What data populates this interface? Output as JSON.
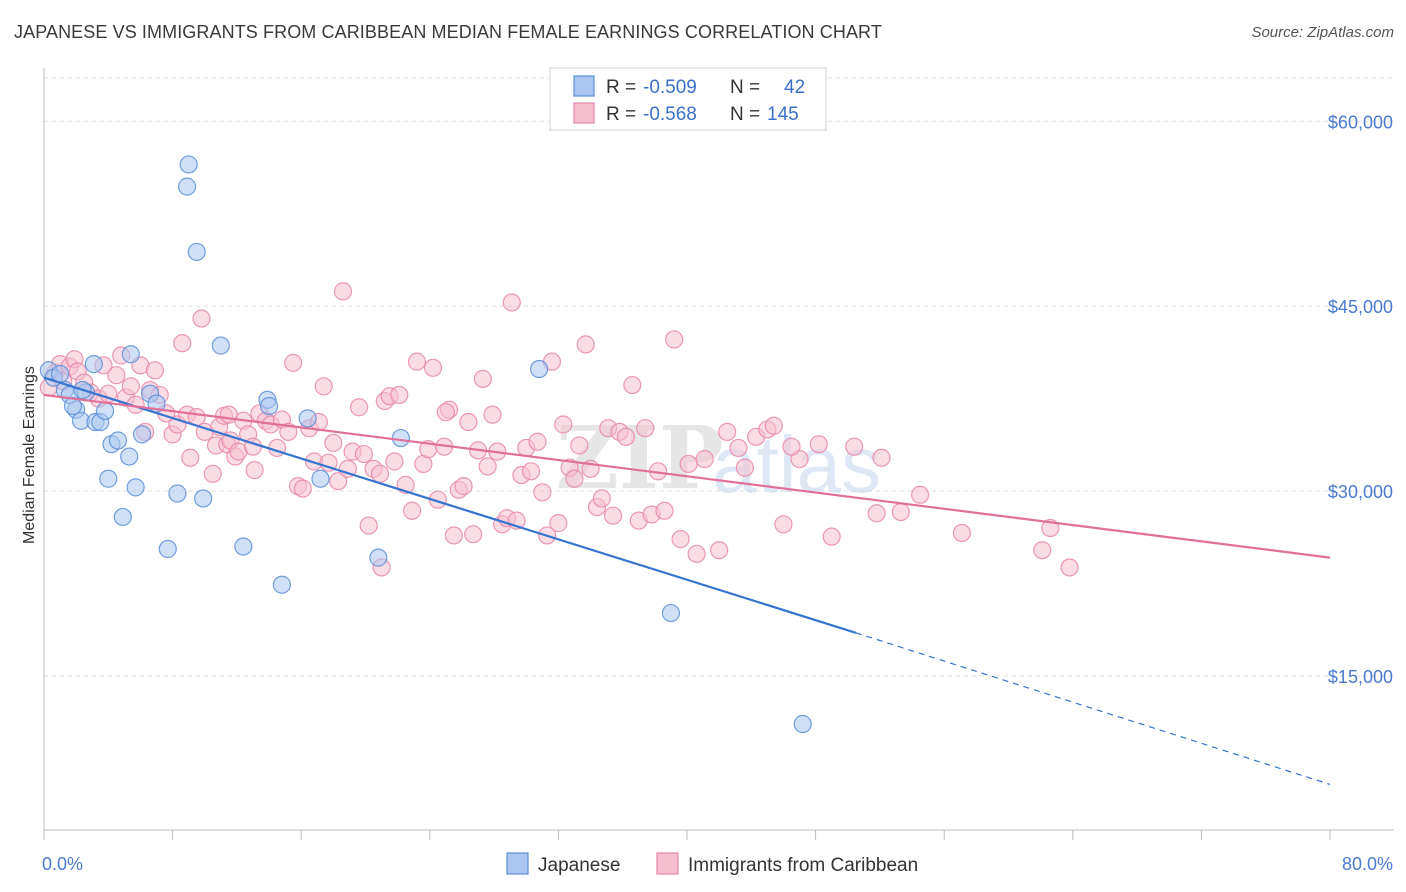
{
  "title": "JAPANESE VS IMMIGRANTS FROM CARIBBEAN MEDIAN FEMALE EARNINGS CORRELATION CHART",
  "source": "Source: ZipAtlas.com",
  "watermark": {
    "zip": "ZIP",
    "atlas": "atlas"
  },
  "legend": {
    "r_label": "R =",
    "n_label": "N =",
    "series": [
      {
        "name": "Japanese",
        "r": "-0.509",
        "n": "42",
        "fill": "#aac6f0",
        "stroke": "#5b8ed8"
      },
      {
        "name": "Immigrants from Caribbean",
        "r": "-0.568",
        "n": "145",
        "fill": "#f6bfd0",
        "stroke": "#e887a8"
      }
    ]
  },
  "chart_data": {
    "type": "scatter",
    "title": "JAPANESE VS IMMIGRANTS FROM CARIBBEAN MEDIAN FEMALE EARNINGS CORRELATION CHART",
    "xlabel": "",
    "ylabel": "Median Female Earnings",
    "xlim": [
      0,
      80
    ],
    "ylim": [
      2500,
      64000
    ],
    "x_tick_labels": [
      "0.0%",
      "80.0%"
    ],
    "y_ticks": [
      15000,
      30000,
      45000,
      60000
    ],
    "y_tick_labels": [
      "$15,000",
      "$30,000",
      "$45,000",
      "$60,000"
    ],
    "series": [
      {
        "name": "Japanese",
        "color": "#5b8ed8",
        "fill": "#aac6f0",
        "trend": {
          "x0": 0,
          "y0": 39200,
          "x1": 50.5,
          "y1": 18500,
          "dash_to_x": 80,
          "dash_to_y": 6200,
          "color": "#3574d0"
        },
        "points": [
          [
            0.3,
            39800
          ],
          [
            0.6,
            39200
          ],
          [
            1.0,
            39500
          ],
          [
            1.3,
            38200
          ],
          [
            1.6,
            37800
          ],
          [
            2.0,
            36600
          ],
          [
            2.3,
            35700
          ],
          [
            2.6,
            38000
          ],
          [
            3.1,
            40300
          ],
          [
            3.2,
            35600
          ],
          [
            3.5,
            35600
          ],
          [
            3.8,
            36500
          ],
          [
            4.0,
            31000
          ],
          [
            4.2,
            33800
          ],
          [
            4.6,
            34100
          ],
          [
            4.9,
            27900
          ],
          [
            5.3,
            32800
          ],
          [
            5.4,
            41100
          ],
          [
            5.7,
            30300
          ],
          [
            6.1,
            34600
          ],
          [
            6.6,
            37900
          ],
          [
            7.0,
            37100
          ],
          [
            7.7,
            25300
          ],
          [
            8.3,
            29800
          ],
          [
            9.0,
            56500
          ],
          [
            8.9,
            54700
          ],
          [
            9.5,
            49400
          ],
          [
            9.9,
            29400
          ],
          [
            11.0,
            41800
          ],
          [
            12.4,
            25500
          ],
          [
            13.9,
            37400
          ],
          [
            14.0,
            36900
          ],
          [
            14.8,
            22400
          ],
          [
            16.4,
            35900
          ],
          [
            17.2,
            31000
          ],
          [
            20.8,
            24600
          ],
          [
            22.2,
            34300
          ],
          [
            30.8,
            39900
          ],
          [
            39.0,
            20100
          ],
          [
            47.2,
            11100
          ],
          [
            1.8,
            36900
          ],
          [
            2.4,
            38200
          ]
        ]
      },
      {
        "name": "Immigrants from Caribbean",
        "color": "#e887a8",
        "fill": "#f6bfd0",
        "trend": {
          "x0": 0,
          "y0": 37800,
          "x1": 80,
          "y1": 24600,
          "color": "#e07099"
        },
        "points": [
          [
            0.3,
            38400
          ],
          [
            0.7,
            39600
          ],
          [
            1.0,
            40300
          ],
          [
            1.2,
            38900
          ],
          [
            1.6,
            40100
          ],
          [
            1.9,
            40700
          ],
          [
            2.1,
            39700
          ],
          [
            2.5,
            38800
          ],
          [
            2.9,
            38000
          ],
          [
            3.4,
            37500
          ],
          [
            3.7,
            40200
          ],
          [
            4.0,
            37900
          ],
          [
            4.5,
            39400
          ],
          [
            4.8,
            41000
          ],
          [
            5.1,
            37600
          ],
          [
            5.4,
            38500
          ],
          [
            5.7,
            37000
          ],
          [
            6.0,
            40200
          ],
          [
            6.3,
            34800
          ],
          [
            6.6,
            38200
          ],
          [
            6.9,
            39800
          ],
          [
            7.2,
            37800
          ],
          [
            7.6,
            36300
          ],
          [
            8.0,
            34600
          ],
          [
            8.3,
            35400
          ],
          [
            8.6,
            42000
          ],
          [
            8.9,
            36200
          ],
          [
            9.1,
            32700
          ],
          [
            9.5,
            36000
          ],
          [
            9.8,
            44000
          ],
          [
            10.0,
            34800
          ],
          [
            10.5,
            31400
          ],
          [
            10.7,
            33700
          ],
          [
            10.9,
            35200
          ],
          [
            11.2,
            36100
          ],
          [
            11.4,
            33800
          ],
          [
            11.6,
            34100
          ],
          [
            11.9,
            32800
          ],
          [
            12.1,
            33200
          ],
          [
            12.4,
            35700
          ],
          [
            12.7,
            34600
          ],
          [
            13.1,
            31700
          ],
          [
            13.4,
            36300
          ],
          [
            13.8,
            35700
          ],
          [
            14.1,
            35400
          ],
          [
            14.5,
            33500
          ],
          [
            14.8,
            35800
          ],
          [
            15.2,
            34800
          ],
          [
            15.5,
            40400
          ],
          [
            15.8,
            30400
          ],
          [
            16.1,
            30200
          ],
          [
            16.5,
            35100
          ],
          [
            16.8,
            32400
          ],
          [
            17.1,
            35600
          ],
          [
            17.4,
            38500
          ],
          [
            17.7,
            32300
          ],
          [
            18.0,
            33900
          ],
          [
            18.3,
            30800
          ],
          [
            18.6,
            46200
          ],
          [
            18.9,
            31800
          ],
          [
            19.2,
            33200
          ],
          [
            19.6,
            36800
          ],
          [
            19.9,
            33000
          ],
          [
            20.2,
            27200
          ],
          [
            20.5,
            31800
          ],
          [
            20.9,
            31400
          ],
          [
            21.2,
            37300
          ],
          [
            21.5,
            37700
          ],
          [
            21.8,
            32400
          ],
          [
            22.1,
            37800
          ],
          [
            22.5,
            30500
          ],
          [
            22.9,
            28400
          ],
          [
            23.2,
            40500
          ],
          [
            23.6,
            32200
          ],
          [
            23.9,
            33400
          ],
          [
            24.2,
            40000
          ],
          [
            24.5,
            29300
          ],
          [
            24.9,
            33600
          ],
          [
            25.2,
            36600
          ],
          [
            25.5,
            26400
          ],
          [
            25.8,
            30100
          ],
          [
            26.1,
            30400
          ],
          [
            26.4,
            35600
          ],
          [
            26.7,
            26500
          ],
          [
            27.0,
            33300
          ],
          [
            27.3,
            39100
          ],
          [
            27.6,
            32000
          ],
          [
            27.9,
            36200
          ],
          [
            28.2,
            33200
          ],
          [
            28.5,
            27300
          ],
          [
            28.8,
            27800
          ],
          [
            29.1,
            45300
          ],
          [
            29.4,
            27600
          ],
          [
            29.7,
            31300
          ],
          [
            30.0,
            33500
          ],
          [
            30.3,
            31600
          ],
          [
            30.7,
            34000
          ],
          [
            31.0,
            29900
          ],
          [
            31.3,
            26400
          ],
          [
            31.6,
            40500
          ],
          [
            32.0,
            27400
          ],
          [
            32.3,
            35400
          ],
          [
            32.7,
            31900
          ],
          [
            33.0,
            31000
          ],
          [
            33.3,
            33700
          ],
          [
            33.7,
            41900
          ],
          [
            34.0,
            31800
          ],
          [
            34.4,
            28700
          ],
          [
            34.7,
            29400
          ],
          [
            35.1,
            35100
          ],
          [
            35.4,
            28000
          ],
          [
            35.8,
            34800
          ],
          [
            36.2,
            34400
          ],
          [
            36.6,
            38600
          ],
          [
            37.0,
            27600
          ],
          [
            37.4,
            35100
          ],
          [
            37.8,
            28100
          ],
          [
            38.2,
            31600
          ],
          [
            38.6,
            28400
          ],
          [
            39.2,
            42300
          ],
          [
            39.6,
            26100
          ],
          [
            40.1,
            32200
          ],
          [
            40.6,
            24900
          ],
          [
            41.1,
            32600
          ],
          [
            42.0,
            25200
          ],
          [
            42.5,
            34800
          ],
          [
            43.2,
            33500
          ],
          [
            43.6,
            31900
          ],
          [
            44.3,
            34400
          ],
          [
            45.0,
            35000
          ],
          [
            45.4,
            35300
          ],
          [
            46.0,
            27300
          ],
          [
            47.0,
            32600
          ],
          [
            48.2,
            33800
          ],
          [
            49.0,
            26300
          ],
          [
            50.4,
            33600
          ],
          [
            51.8,
            28200
          ],
          [
            52.1,
            32700
          ],
          [
            53.3,
            28300
          ],
          [
            54.5,
            29700
          ],
          [
            57.1,
            26600
          ],
          [
            62.1,
            25200
          ],
          [
            62.6,
            27000
          ],
          [
            63.8,
            23800
          ],
          [
            21.0,
            23800
          ],
          [
            13.0,
            33600
          ],
          [
            46.5,
            33600
          ],
          [
            25.0,
            36400
          ],
          [
            11.5,
            36200
          ]
        ]
      }
    ]
  }
}
